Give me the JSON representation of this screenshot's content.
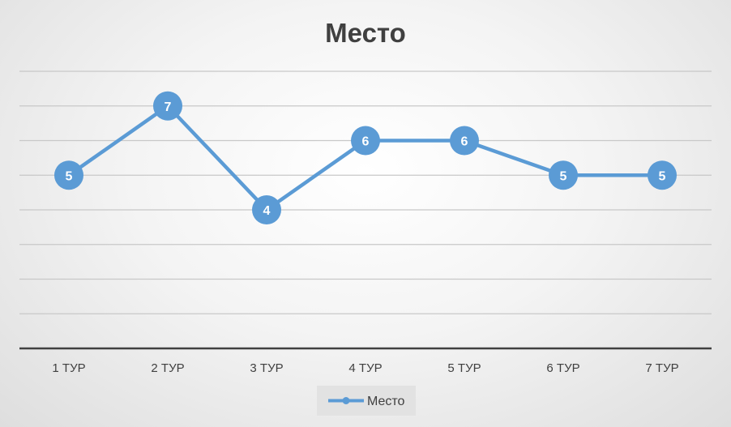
{
  "colors": {
    "series": "#5b9bd5",
    "grid": "#c8c8c8",
    "axis": "#404040",
    "legend_bg": "#e2e2e2"
  },
  "chart_data": {
    "type": "line",
    "title": "Место",
    "categories": [
      "1 ТУР",
      "2 ТУР",
      "3 ТУР",
      "4 ТУР",
      "5 ТУР",
      "6 ТУР",
      "7 ТУР"
    ],
    "series": [
      {
        "name": "Место",
        "values": [
          5,
          7,
          4,
          6,
          6,
          5,
          5
        ]
      }
    ],
    "ylim": [
      0,
      8
    ],
    "y_gridlines": [
      1,
      2,
      3,
      4,
      5,
      6,
      7,
      8
    ],
    "y_tick_labels_shown": false,
    "data_labels": true,
    "grid": true,
    "legend": "bottom"
  }
}
